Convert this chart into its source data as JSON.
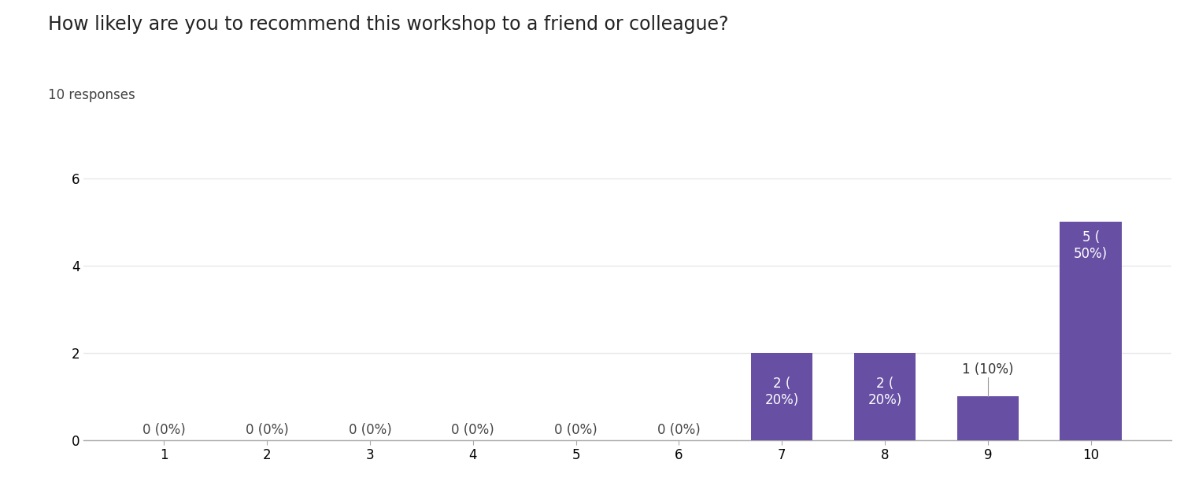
{
  "title": "How likely are you to recommend this workshop to a friend or colleague?",
  "subtitle": "10 responses",
  "categories": [
    1,
    2,
    3,
    4,
    5,
    6,
    7,
    8,
    9,
    10
  ],
  "values": [
    0,
    0,
    0,
    0,
    0,
    0,
    2,
    2,
    1,
    5
  ],
  "bar_labels": [
    "0 (0%)",
    "0 (0%)",
    "0 (0%)",
    "0 (0%)",
    "0 (0%)",
    "0 (0%)",
    "2 (\n20%)",
    "2 (\n20%)",
    "1 (10%)",
    "5 (\n50%)"
  ],
  "bar_color": "#6750a4",
  "zero_label_color": "#444444",
  "label_color_inside": "#ffffff",
  "label_color_outside": "#333333",
  "ylim_max": 6.5,
  "yticks": [
    0,
    2,
    4,
    6
  ],
  "title_fontsize": 17,
  "subtitle_fontsize": 12,
  "tick_fontsize": 12,
  "label_fontsize": 12,
  "background_color": "#ffffff",
  "grid_color": "#e8e8e8",
  "spine_color": "#aaaaaa"
}
